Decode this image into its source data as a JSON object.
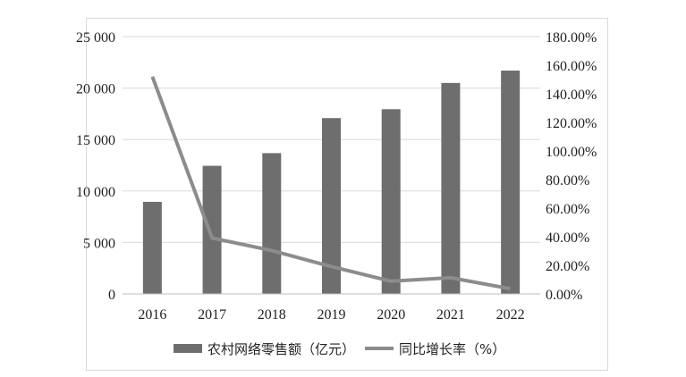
{
  "chart_data": {
    "type": "bar",
    "categories": [
      "2016",
      "2017",
      "2018",
      "2019",
      "2020",
      "2021",
      "2022"
    ],
    "series": [
      {
        "name": "农村网络零售额（亿元）",
        "type": "bar",
        "axis": "left",
        "values": [
          8945,
          12449,
          13679,
          17083,
          17945,
          20500,
          21700
        ],
        "color": "#6e6e6e"
      },
      {
        "name": "同比增长率（%）",
        "type": "line",
        "axis": "right",
        "values": [
          152.0,
          39.1,
          30.4,
          19.1,
          8.9,
          11.3,
          3.6
        ],
        "color": "#8c8c8c"
      }
    ],
    "left_axis": {
      "ylim": [
        0,
        25000
      ],
      "ticks": [
        0,
        5000,
        10000,
        15000,
        20000,
        25000
      ],
      "tick_labels": [
        "0",
        "5 000",
        "10 000",
        "15 000",
        "20 000",
        "25 000"
      ]
    },
    "right_axis": {
      "ylim": [
        0,
        180
      ],
      "ticks": [
        0,
        20,
        40,
        60,
        80,
        100,
        120,
        140,
        160,
        180
      ],
      "tick_labels": [
        "0.00%",
        "20.00%",
        "40.00%",
        "60.00%",
        "80.00%",
        "100.00%",
        "120.00%",
        "140.00%",
        "160.00%",
        "180.00%"
      ]
    },
    "grid": true,
    "legend": {
      "placement": "bottom",
      "entries": [
        "农村网络零售额（亿元）",
        "同比增长率（%）"
      ]
    }
  }
}
